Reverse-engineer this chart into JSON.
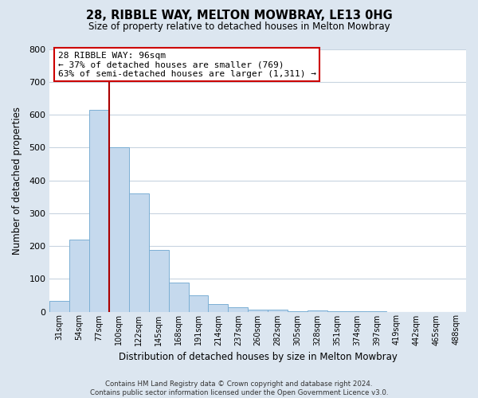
{
  "title": "28, RIBBLE WAY, MELTON MOWBRAY, LE13 0HG",
  "subtitle": "Size of property relative to detached houses in Melton Mowbray",
  "xlabel": "Distribution of detached houses by size in Melton Mowbray",
  "ylabel": "Number of detached properties",
  "bin_labels": [
    "31sqm",
    "54sqm",
    "77sqm",
    "100sqm",
    "122sqm",
    "145sqm",
    "168sqm",
    "191sqm",
    "214sqm",
    "237sqm",
    "260sqm",
    "282sqm",
    "305sqm",
    "328sqm",
    "351sqm",
    "374sqm",
    "397sqm",
    "419sqm",
    "442sqm",
    "465sqm",
    "488sqm"
  ],
  "bar_heights": [
    33,
    220,
    615,
    500,
    360,
    188,
    88,
    50,
    22,
    14,
    5,
    6,
    2,
    4,
    2,
    1,
    1,
    0,
    0,
    0,
    0
  ],
  "bar_color": "#c5d9ed",
  "bar_edge_color": "#7bafd4",
  "vline_color": "#aa0000",
  "annotation_text": "28 RIBBLE WAY: 96sqm\n← 37% of detached houses are smaller (769)\n63% of semi-detached houses are larger (1,311) →",
  "annotation_box_color": "#ffffff",
  "annotation_box_edge": "#cc0000",
  "ylim": [
    0,
    800
  ],
  "yticks": [
    0,
    100,
    200,
    300,
    400,
    500,
    600,
    700,
    800
  ],
  "footer": "Contains HM Land Registry data © Crown copyright and database right 2024.\nContains public sector information licensed under the Open Government Licence v3.0.",
  "bg_color": "#dce6f0",
  "plot_bg_color": "#ffffff",
  "grid_color": "#c8d4e0"
}
